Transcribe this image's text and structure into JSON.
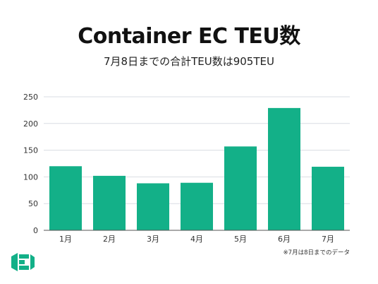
{
  "title": "Container EC TEU数",
  "subtitle": "7月8日までの合計TEU数は905TEU",
  "footnote": "※7月は8日までのデータ",
  "colors": {
    "bar": "#13b088",
    "grid": "#d9dde3",
    "logo": "#13b088"
  },
  "chart_data": {
    "type": "bar",
    "title": "Container EC TEU数",
    "subtitle": "7月8日までの合計TEU数は905TEU",
    "categories": [
      "1月",
      "2月",
      "3月",
      "4月",
      "5月",
      "6月",
      "7月"
    ],
    "values": [
      120,
      102,
      88,
      89,
      157,
      229,
      119
    ],
    "ylim": [
      0,
      250
    ],
    "yticks": [
      0,
      50,
      100,
      150,
      200,
      250
    ],
    "grid": true,
    "legend": "none",
    "annotations": [
      "※7月は8日までのデータ"
    ]
  }
}
